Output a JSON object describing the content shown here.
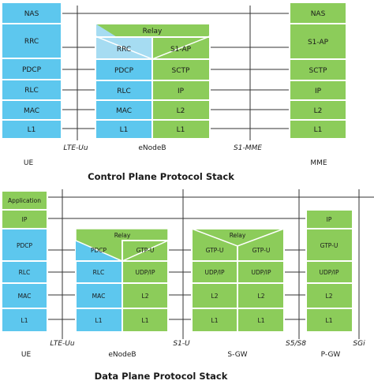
{
  "colors": {
    "blue": "#5dc7ee",
    "light_blue": "#a6dcf2",
    "green": "#8ccc5a",
    "border": "#ffffff",
    "line": "#333333"
  },
  "control_plane": {
    "title": "Control Plane Protocol Stack",
    "ue": {
      "layers": [
        "NAS",
        "RRC",
        "PDCP",
        "RLC",
        "MAC",
        "L1"
      ],
      "label": "UE"
    },
    "enodeb": {
      "relay": "Relay",
      "left": [
        "RRC",
        "PDCP",
        "RLC",
        "MAC",
        "L1"
      ],
      "right": [
        "S1-AP",
        "SCTP",
        "IP",
        "L2",
        "L1"
      ],
      "label": "eNodeB"
    },
    "mme": {
      "layers": [
        "NAS",
        "S1-AP",
        "SCTP",
        "IP",
        "L2",
        "L1"
      ],
      "label": "MME"
    },
    "interfaces": [
      "LTE-Uu",
      "S1-MME"
    ]
  },
  "data_plane": {
    "title": "Data Plane Protocol Stack",
    "ue": {
      "layers": [
        "Application",
        "IP",
        "PDCP",
        "RLC",
        "MAC",
        "L1"
      ],
      "label": "UE"
    },
    "enodeb": {
      "relay": "Relay",
      "left": [
        "PDCP",
        "RLC",
        "MAC",
        "L1"
      ],
      "right": [
        "GTP-U",
        "UDP/IP",
        "L2",
        "L1"
      ],
      "label": "eNodeB"
    },
    "sgw": {
      "relay": "Relay",
      "left": [
        "GTP-U",
        "UDP/IP",
        "L2",
        "L1"
      ],
      "right": [
        "GTP-U",
        "UDP/IP",
        "L2",
        "L1"
      ],
      "label": "S-GW"
    },
    "pgw": {
      "layers": [
        "IP",
        "GTP-U",
        "UDP/IP",
        "L2",
        "L1"
      ],
      "label": "P-GW"
    },
    "interfaces": [
      "LTE-Uu",
      "S1-U",
      "S5/S8",
      "SGi"
    ]
  }
}
